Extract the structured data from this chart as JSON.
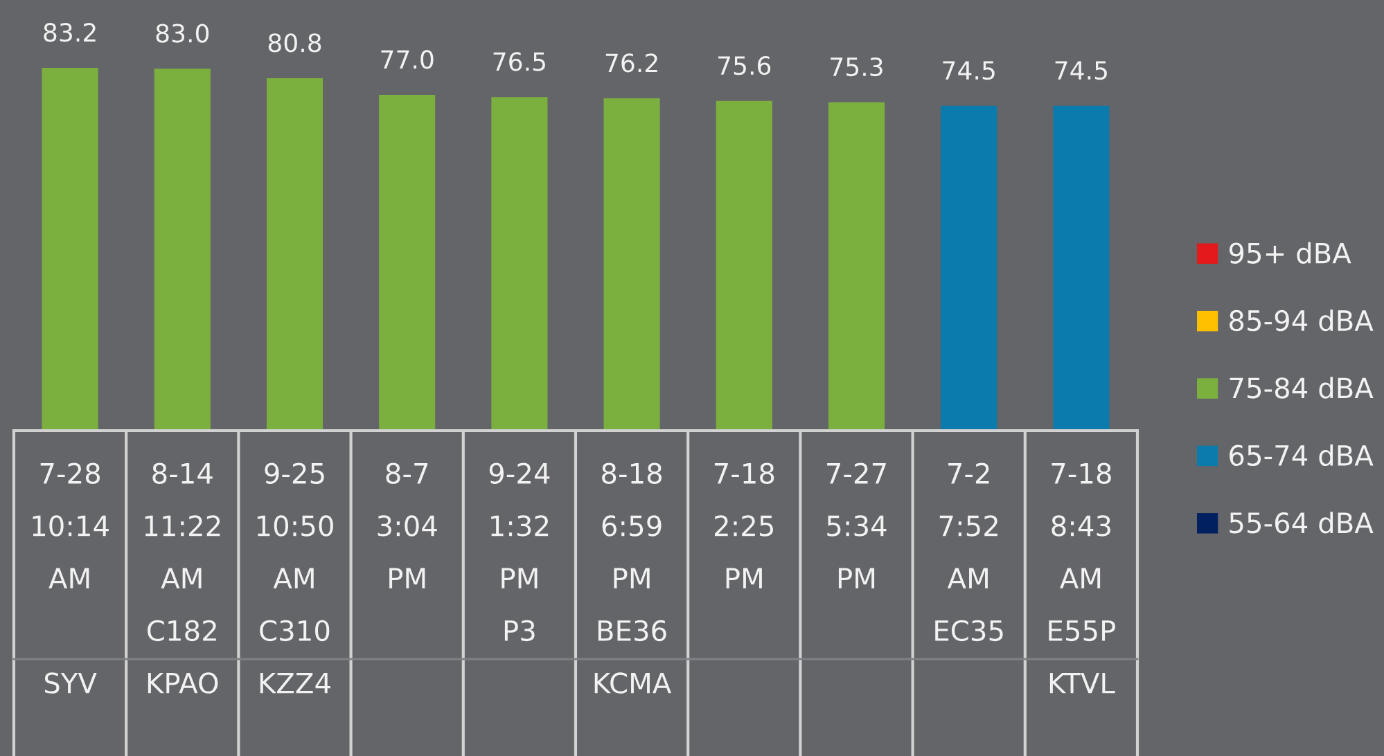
{
  "chart_data": {
    "type": "bar",
    "stacked": true,
    "legend": "right",
    "categories": [
      "7-28\n10:14\nAM\n\nSYV",
      "8-14\n11:22\nAM\nC182\nKPAO",
      "9-25\n10:50\nAM\nC310\nKZZ4",
      "8-7\n3:04\nPM",
      "9-24\n1:32\nPM\nP3",
      "8-18\n6:59\nPM\nBE36\nKCMA",
      "7-18\n2:25\nPM",
      "7-27\n5:34\nPM",
      "7-2\n7:52\nAM\nEC35",
      "7-18\n8:43\nAM\nE55P\nKTVL"
    ],
    "series": [
      {
        "name": "95+ dBA",
        "color": "#e3191b",
        "values": [
          null,
          null,
          null,
          null,
          null,
          null,
          null,
          null,
          null,
          null
        ]
      },
      {
        "name": "85-94 dBA",
        "color": "#ffc000",
        "values": [
          null,
          null,
          null,
          null,
          null,
          null,
          null,
          null,
          null,
          null
        ]
      },
      {
        "name": "75-84 dBA",
        "color": "#7cb03e",
        "values": [
          83.2,
          83.0,
          80.8,
          77.0,
          76.5,
          76.2,
          75.6,
          75.3,
          null,
          null
        ],
        "value_labels": [
          "83.2",
          "83.0",
          "80.8",
          "77.0",
          "76.5",
          "76.2",
          "75.6",
          "75.3",
          null,
          null
        ]
      },
      {
        "name": "65-74 dBA",
        "color": "#0a7bac",
        "values": [
          null,
          null,
          null,
          null,
          null,
          null,
          null,
          null,
          74.5,
          74.5
        ],
        "value_labels": [
          null,
          null,
          null,
          null,
          null,
          null,
          null,
          null,
          "74.5",
          "74.5"
        ]
      },
      {
        "name": "55-64 dBA",
        "color": "#002060",
        "values": [
          null,
          null,
          null,
          null,
          null,
          null,
          null,
          null,
          null,
          null
        ]
      }
    ]
  }
}
